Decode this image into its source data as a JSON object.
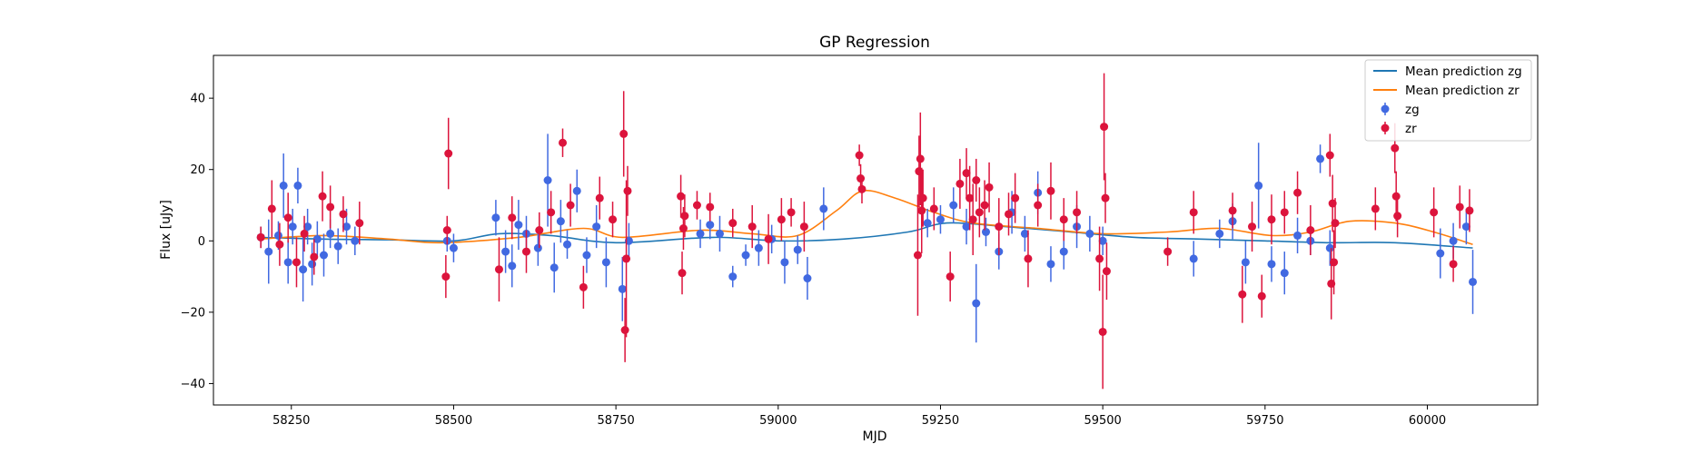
{
  "chart_data": {
    "type": "scatter",
    "title": "GP Regression",
    "xlabel": "MJD",
    "ylabel": "Flux [uJy]",
    "xlim": [
      58130,
      60170
    ],
    "ylim": [
      -46,
      52
    ],
    "xticks": [
      58250,
      58500,
      58750,
      59000,
      59250,
      59500,
      59750,
      60000
    ],
    "yticks": [
      -40,
      -20,
      0,
      20,
      40
    ],
    "legend": {
      "position": "top-right",
      "entries": [
        {
          "label": "Mean prediction zg",
          "kind": "line",
          "color": "#1f77b4"
        },
        {
          "label": "Mean prediction zr",
          "kind": "line",
          "color": "#ff7f0e"
        },
        {
          "label": "zg",
          "kind": "errorbar",
          "color": "#4169e1"
        },
        {
          "label": "zr",
          "kind": "errorbar",
          "color": "#dc143c"
        }
      ]
    },
    "series": [
      {
        "name": "Mean prediction zg",
        "kind": "line",
        "color": "#1f77b4",
        "x": [
          58200,
          58300,
          58400,
          58500,
          58570,
          58650,
          58750,
          58900,
          59000,
          59100,
          59200,
          59260,
          59350,
          59450,
          59550,
          59650,
          59750,
          59850,
          59950,
          60070
        ],
        "y": [
          1.0,
          0.5,
          0.3,
          0.0,
          2.0,
          1.5,
          -0.5,
          1.0,
          0.0,
          0.5,
          2.5,
          5.0,
          4.0,
          2.5,
          1.0,
          0.5,
          0.0,
          -0.5,
          -0.5,
          -2.0
        ]
      },
      {
        "name": "Mean prediction zr",
        "kind": "line",
        "color": "#ff7f0e",
        "x": [
          58200,
          58300,
          58400,
          58480,
          58600,
          58700,
          58760,
          58880,
          58960,
          59030,
          59090,
          59130,
          59180,
          59240,
          59300,
          59400,
          59500,
          59600,
          59680,
          59760,
          59820,
          59880,
          59950,
          60010,
          60070
        ],
        "y": [
          0.5,
          1.5,
          0.5,
          -0.5,
          1.0,
          3.5,
          1.0,
          3.0,
          2.0,
          1.5,
          8.5,
          14.0,
          12.0,
          8.0,
          5.0,
          3.5,
          2.0,
          2.5,
          3.5,
          1.5,
          2.5,
          5.5,
          5.0,
          2.5,
          -1.0
        ]
      },
      {
        "name": "zg",
        "kind": "errorbar",
        "color": "#4169e1",
        "x": [
          58203,
          58215,
          58230,
          58238,
          58245,
          58252,
          58260,
          58268,
          58275,
          58282,
          58290,
          58300,
          58310,
          58322,
          58335,
          58348,
          58490,
          58500,
          58565,
          58580,
          58590,
          58600,
          58612,
          58630,
          58645,
          58655,
          58665,
          58675,
          58690,
          58705,
          58720,
          58735,
          58760,
          58770,
          58880,
          58895,
          58910,
          58930,
          58950,
          58970,
          58990,
          59010,
          59030,
          59045,
          59070,
          59230,
          59250,
          59270,
          59290,
          59305,
          59320,
          59340,
          59360,
          59380,
          59400,
          59420,
          59440,
          59460,
          59480,
          59500,
          59640,
          59680,
          59700,
          59720,
          59740,
          59760,
          59780,
          59800,
          59820,
          59835,
          59850,
          60020,
          60040,
          60060,
          60070
        ],
        "y": [
          1.0,
          -3.0,
          1.5,
          15.5,
          -6.0,
          4.0,
          15.5,
          -8.0,
          4.0,
          -6.5,
          0.5,
          -4.0,
          2.0,
          -1.5,
          4.0,
          0.0,
          0.0,
          -2.0,
          6.5,
          -3.0,
          -7.0,
          4.5,
          2.0,
          -2.0,
          17.0,
          -7.5,
          5.5,
          -1.0,
          14.0,
          -4.0,
          4.0,
          -6.0,
          -13.5,
          0.0,
          2.0,
          4.5,
          2.0,
          -10.0,
          -4.0,
          -2.0,
          0.5,
          -6.0,
          -2.5,
          -10.5,
          9.0,
          5.0,
          6.0,
          10.0,
          4.0,
          -17.5,
          2.5,
          -3.0,
          8.0,
          2.0,
          13.5,
          -6.5,
          -3.0,
          4.0,
          2.0,
          0.0,
          -5.0,
          2.0,
          5.5,
          -6.0,
          15.5,
          -6.5,
          -9.0,
          1.5,
          0.0,
          23.0,
          -2.0,
          -3.5,
          0.0,
          4.0,
          -11.5
        ],
        "yerr": [
          3,
          9,
          4,
          9,
          6,
          5,
          5,
          9,
          5,
          6,
          5,
          6,
          4,
          5,
          5,
          4,
          3,
          4,
          5,
          6,
          6,
          7,
          5,
          5,
          13,
          7,
          6,
          4,
          6,
          5,
          6,
          7,
          9,
          5,
          4,
          4,
          5,
          3,
          3,
          5,
          4,
          6,
          4,
          6,
          6,
          4,
          4,
          5,
          5,
          11,
          4,
          5,
          6,
          5,
          6,
          5,
          5,
          6,
          5,
          4,
          5,
          4,
          5,
          6,
          12,
          5,
          6,
          5,
          4,
          4,
          5,
          7,
          5,
          5,
          9
        ]
      },
      {
        "name": "zr",
        "kind": "errorbar",
        "color": "#dc143c",
        "x": [
          58203,
          58220,
          58232,
          58245,
          58258,
          58270,
          58285,
          58298,
          58310,
          58330,
          58355,
          58488,
          58490,
          58492,
          58570,
          58590,
          58612,
          58632,
          58650,
          58668,
          58680,
          58700,
          58725,
          58745,
          58762,
          58764,
          58766,
          58768,
          58850,
          58852,
          58854,
          58856,
          58875,
          58895,
          58930,
          58960,
          58985,
          59005,
          59020,
          59040,
          59125,
          59127,
          59129,
          59215,
          59217,
          59219,
          59221,
          59223,
          59240,
          59265,
          59280,
          59290,
          59295,
          59300,
          59305,
          59310,
          59318,
          59325,
          59340,
          59355,
          59365,
          59385,
          59400,
          59420,
          59440,
          59460,
          59495,
          59500,
          59502,
          59504,
          59506,
          59600,
          59640,
          59700,
          59715,
          59730,
          59745,
          59760,
          59780,
          59800,
          59820,
          59850,
          59852,
          59854,
          59856,
          59858,
          59920,
          59950,
          59952,
          59954,
          60010,
          60040,
          60050,
          60065
        ],
        "y": [
          1.0,
          9.0,
          -1.0,
          6.5,
          -6.0,
          2.0,
          -4.5,
          12.5,
          9.5,
          7.5,
          5.0,
          -10.0,
          3.0,
          24.5,
          -8.0,
          6.5,
          -3.0,
          3.0,
          8.0,
          27.5,
          10.0,
          -13.0,
          12.0,
          6.0,
          30.0,
          -25.0,
          -5.0,
          14.0,
          12.5,
          -9.0,
          3.5,
          7.0,
          10.0,
          9.5,
          5.0,
          4.0,
          0.5,
          6.0,
          8.0,
          4.0,
          24.0,
          17.5,
          14.5,
          -4.0,
          19.5,
          23.0,
          8.5,
          12.0,
          9.0,
          -10.0,
          16.0,
          19.0,
          12.0,
          6.0,
          17.0,
          8.0,
          10.0,
          15.0,
          4.0,
          7.5,
          12.0,
          -5.0,
          10.0,
          14.0,
          6.0,
          8.0,
          -5.0,
          -25.5,
          32.0,
          12.0,
          -8.5,
          -3.0,
          8.0,
          8.5,
          -15.0,
          4.0,
          -15.5,
          6.0,
          8.0,
          13.5,
          3.0,
          24.0,
          -12.0,
          10.5,
          -6.0,
          5.0,
          9.0,
          26.0,
          12.5,
          7.0,
          8.0,
          -6.5,
          9.5,
          8.5
        ],
        "yerr": [
          3,
          8,
          6,
          7,
          7,
          5,
          5,
          7,
          6,
          5,
          6,
          6,
          4,
          10,
          9,
          6,
          6,
          5,
          6,
          4,
          6,
          6,
          6,
          5,
          12,
          9,
          22,
          7,
          6,
          6,
          6,
          6,
          4,
          4,
          4,
          6,
          7,
          6,
          4,
          7,
          3,
          4,
          4,
          17,
          10,
          13,
          12,
          8,
          6,
          7,
          7,
          7,
          9,
          10,
          6,
          7,
          7,
          7,
          8,
          6,
          7,
          8,
          6,
          8,
          6,
          6,
          9,
          16,
          15,
          7,
          8,
          4,
          6,
          5,
          8,
          7,
          6,
          7,
          6,
          6,
          7,
          6,
          10,
          8,
          9,
          7,
          6,
          7,
          7,
          6,
          7,
          5,
          6,
          6
        ]
      }
    ]
  }
}
